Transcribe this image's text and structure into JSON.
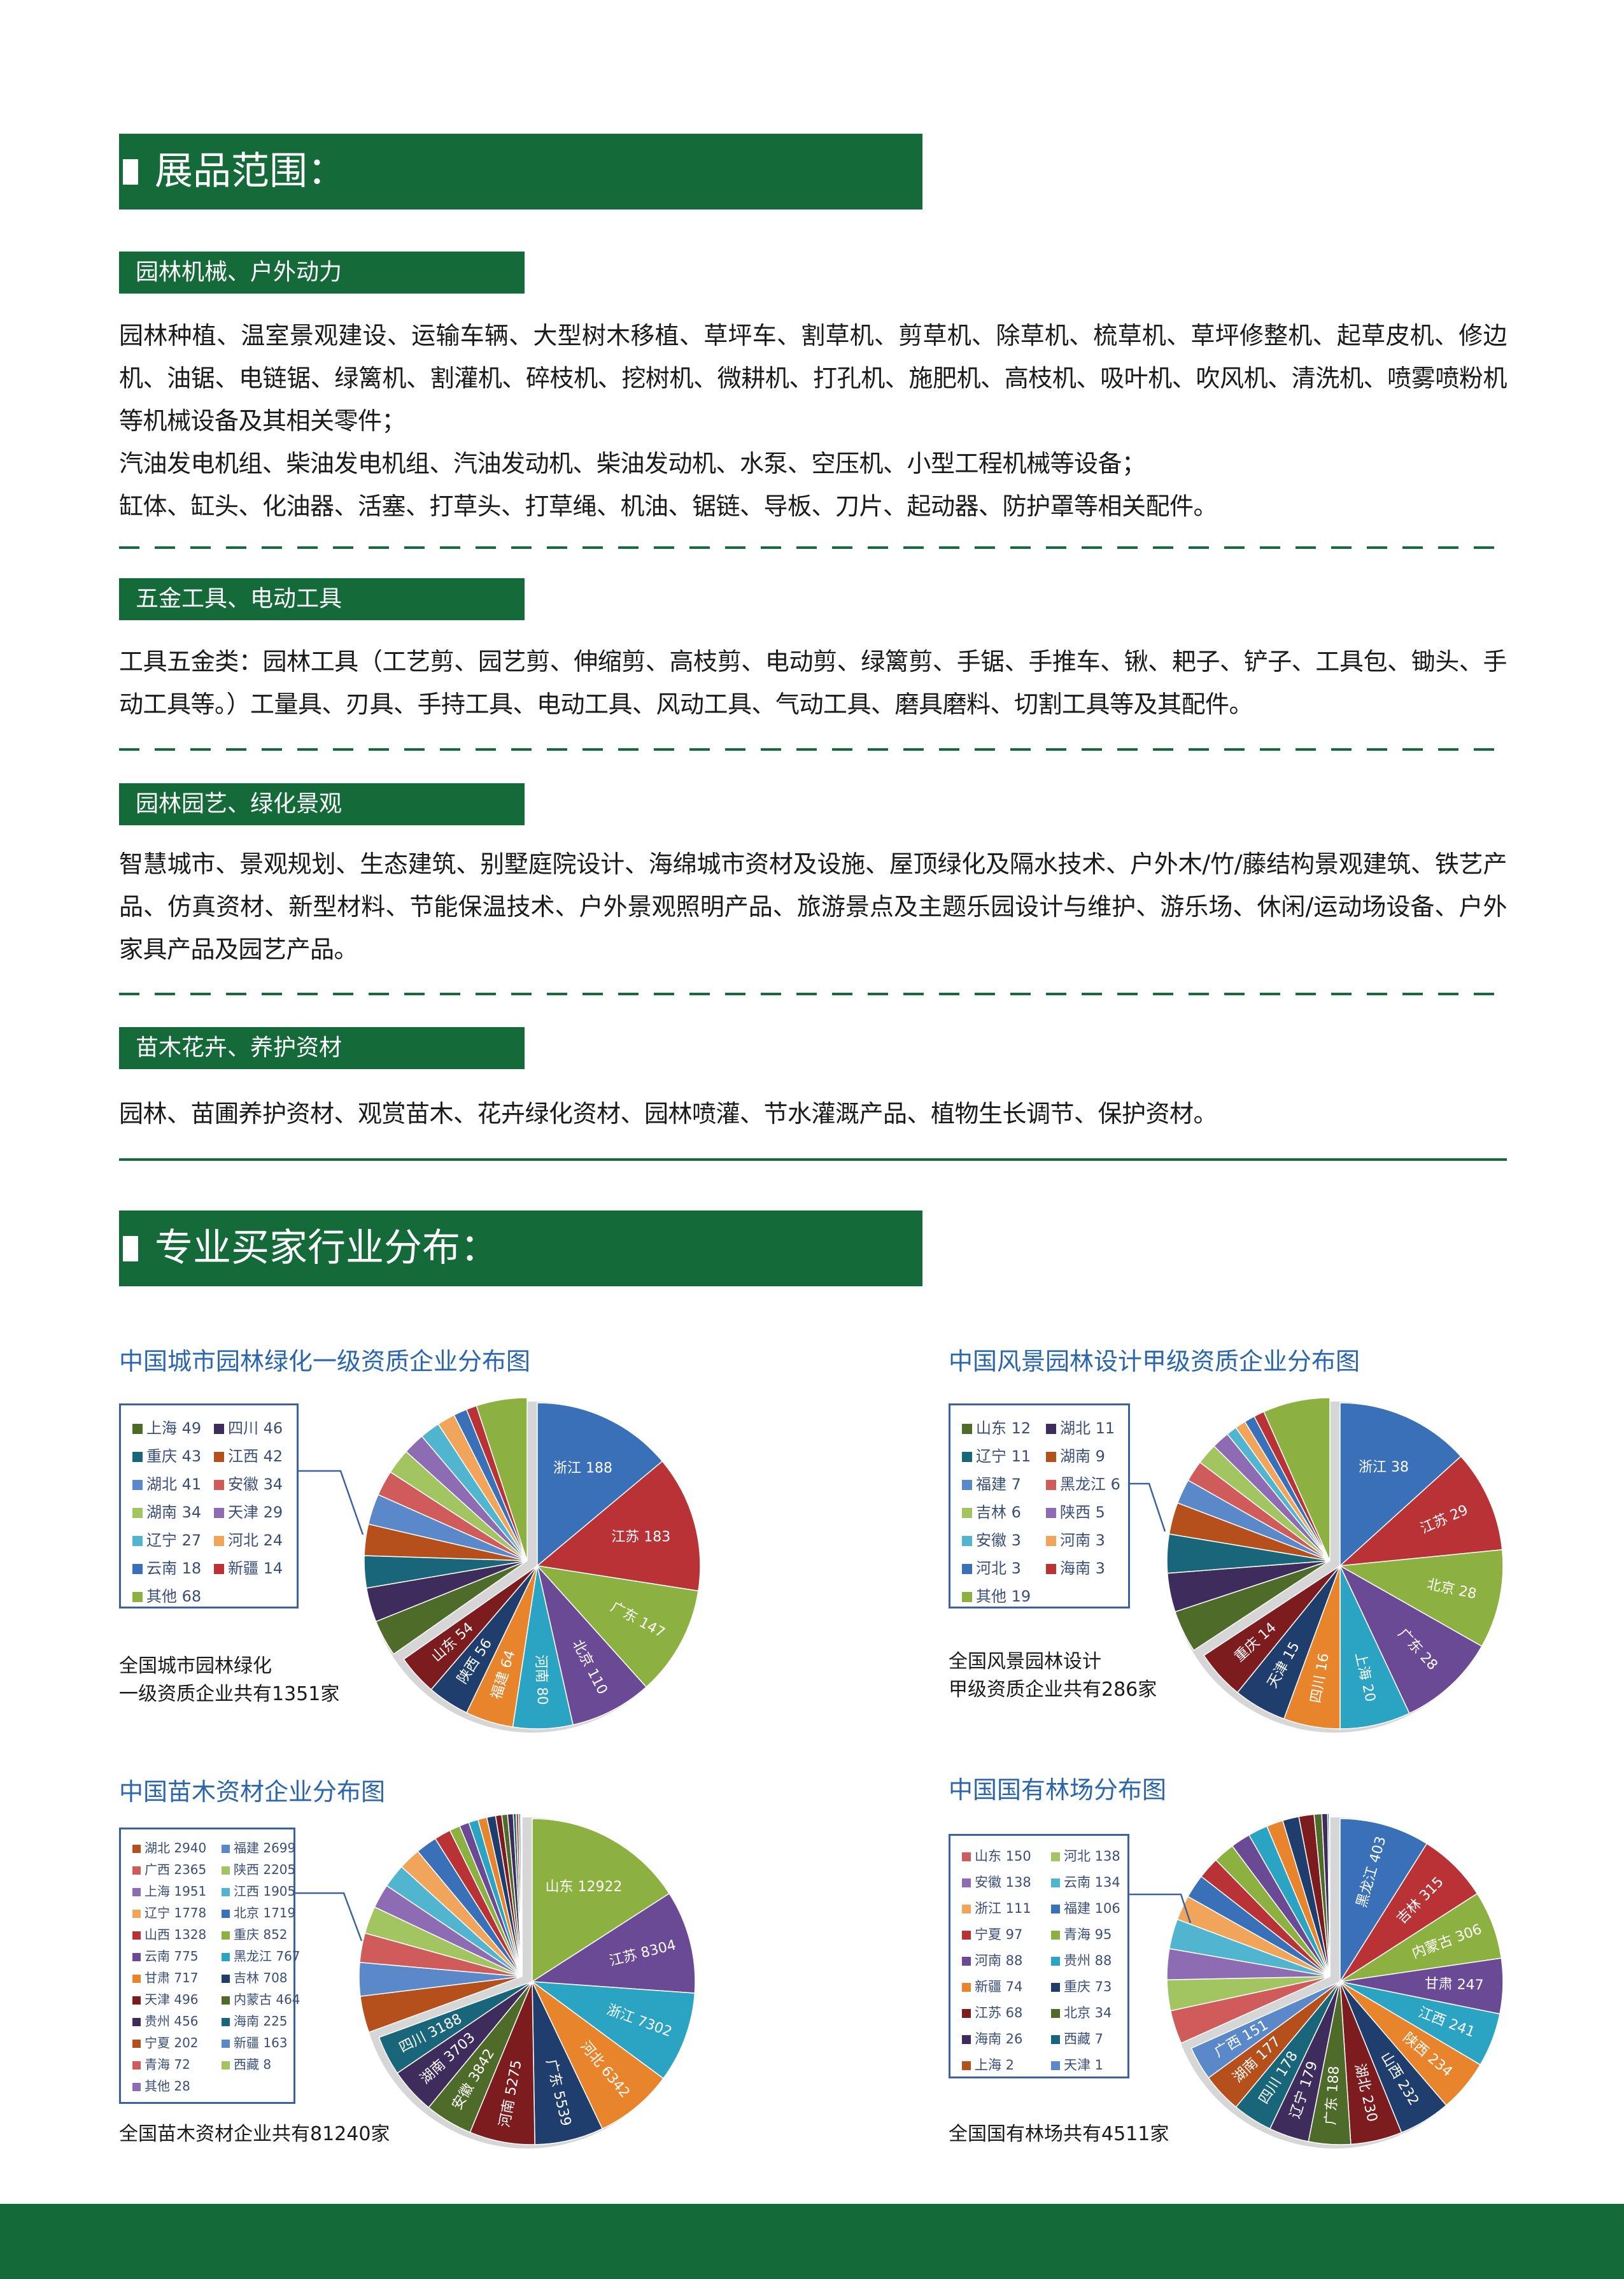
{
  "section1": {
    "title": "展品范围：",
    "categories": [
      {
        "heading": "园林机械、户外动力",
        "paragraphs": [
          "园林种植、温室景观建设、运输车辆、大型树木移植、草坪车、割草机、剪草机、除草机、梳草机、草坪修整机、起草皮机、修边机、油锯、电链锯、绿篱机、割灌机、碎枝机、挖树机、微耕机、打孔机、施肥机、高枝机、吸叶机、吹风机、清洗机、喷雾喷粉机等机械设备及其相关零件；",
          "汽油发电机组、柴油发电机组、汽油发动机、柴油发动机、水泵、空压机、小型工程机械等设备；",
          "缸体、缸头、化油器、活塞、打草头、打草绳、机油、锯链、导板、刀片、起动器、防护罩等相关配件。"
        ]
      },
      {
        "heading": "五金工具、电动工具",
        "paragraphs": [
          "工具五金类：园林工具（工艺剪、园艺剪、伸缩剪、高枝剪、电动剪、绿篱剪、手锯、手推车、锹、耙子、铲子、工具包、锄头、手动工具等。）工量具、刃具、手持工具、电动工具、风动工具、气动工具、磨具磨料、切割工具等及其配件。"
        ]
      },
      {
        "heading": "园林园艺、绿化景观",
        "paragraphs": [
          "智慧城市、景观规划、生态建筑、别墅庭院设计、海绵城市资材及设施、屋顶绿化及隔水技术、户外木/竹/藤结构景观建筑、铁艺产品、仿真资材、新型材料、节能保温技术、户外景观照明产品、旅游景点及主题乐园设计与维护、游乐场、休闲/运动场设备、户外家具产品及园艺产品。"
        ]
      },
      {
        "heading": "苗木花卉、养护资材",
        "paragraphs": [
          "园林、苗圃养护资材、观赏苗木、花卉绿化资材、园林喷灌、节水灌溉产品、植物生长调节、保护资材。"
        ]
      }
    ]
  },
  "section2": {
    "title": "专业买家行业分布："
  },
  "colors": {
    "brand_green": "#146a38",
    "chart_title_blue": "#2a66ad",
    "palette": [
      "#3a70b8",
      "#b83236",
      "#8cb140",
      "#6b4a95",
      "#2ba3c2",
      "#e8842b",
      "#1f3e6e",
      "#7d1c1f",
      "#4f6b2a",
      "#3e2c5c",
      "#19657a",
      "#b5501c",
      "#5b88c9",
      "#d05b5b",
      "#a2c561",
      "#8d6cb3",
      "#52b5d0",
      "#f0a55a"
    ]
  },
  "chart_data": [
    {
      "type": "pie",
      "title": "中国城市园林绿化一级资质企业分布图",
      "caption": [
        "全国城市园林绿化",
        "一级资质企业共有1351家"
      ],
      "color_offset": 0,
      "slices": [
        {
          "name": "浙江",
          "value": 188
        },
        {
          "name": "江苏",
          "value": 183
        },
        {
          "name": "广东",
          "value": 147
        },
        {
          "name": "北京",
          "value": 110
        },
        {
          "name": "河南",
          "value": 80
        },
        {
          "name": "福建",
          "value": 64
        },
        {
          "name": "陕西",
          "value": 56
        },
        {
          "name": "山东",
          "value": 54
        }
      ],
      "legend": [
        {
          "name": "上海",
          "value": 49
        },
        {
          "name": "四川",
          "value": 46
        },
        {
          "name": "重庆",
          "value": 43
        },
        {
          "name": "江西",
          "value": 42
        },
        {
          "name": "湖北",
          "value": 41
        },
        {
          "name": "安徽",
          "value": 34
        },
        {
          "name": "湖南",
          "value": 34
        },
        {
          "name": "天津",
          "value": 29
        },
        {
          "name": "辽宁",
          "value": 27
        },
        {
          "name": "河北",
          "value": 24
        },
        {
          "name": "云南",
          "value": 18
        },
        {
          "name": "新疆",
          "value": 14
        },
        {
          "name": "其他",
          "value": 68
        }
      ]
    },
    {
      "type": "pie",
      "title": "中国风景园林设计甲级资质企业分布图",
      "caption": [
        "全国风景园林设计",
        "甲级资质企业共有286家"
      ],
      "color_offset": 0,
      "slices": [
        {
          "name": "浙江",
          "value": 38
        },
        {
          "name": "江苏",
          "value": 29
        },
        {
          "name": "北京",
          "value": 28
        },
        {
          "name": "广东",
          "value": 28
        },
        {
          "name": "上海",
          "value": 20
        },
        {
          "name": "四川",
          "value": 16
        },
        {
          "name": "天津",
          "value": 15
        },
        {
          "name": "重庆",
          "value": 14
        }
      ],
      "legend": [
        {
          "name": "山东",
          "value": 12
        },
        {
          "name": "湖北",
          "value": 11
        },
        {
          "name": "辽宁",
          "value": 11
        },
        {
          "name": "湖南",
          "value": 9
        },
        {
          "name": "福建",
          "value": 7
        },
        {
          "name": "黑龙江",
          "value": 6
        },
        {
          "name": "吉林",
          "value": 6
        },
        {
          "name": "陕西",
          "value": 5
        },
        {
          "name": "安徽",
          "value": 3
        },
        {
          "name": "河南",
          "value": 3
        },
        {
          "name": "河北",
          "value": 3
        },
        {
          "name": "海南",
          "value": 3
        },
        {
          "name": "其他",
          "value": 19
        }
      ]
    },
    {
      "type": "pie",
      "title": "中国苗木资材企业分布图",
      "caption": [
        "全国苗木资材企业共有81240家"
      ],
      "color_offset": 2,
      "slices": [
        {
          "name": "山东",
          "value": 12922
        },
        {
          "name": "江苏",
          "value": 8304
        },
        {
          "name": "浙江",
          "value": 7302
        },
        {
          "name": "河北",
          "value": 6342
        },
        {
          "name": "广东",
          "value": 5539
        },
        {
          "name": "河南",
          "value": 5275
        },
        {
          "name": "安徽",
          "value": 3842
        },
        {
          "name": "湖南",
          "value": 3703
        },
        {
          "name": "四川",
          "value": 3188
        }
      ],
      "legend": [
        {
          "name": "湖北",
          "value": 2940
        },
        {
          "name": "福建",
          "value": 2699
        },
        {
          "name": "广西",
          "value": 2365
        },
        {
          "name": "陕西",
          "value": 2205
        },
        {
          "name": "上海",
          "value": 1951
        },
        {
          "name": "江西",
          "value": 1905
        },
        {
          "name": "辽宁",
          "value": 1778
        },
        {
          "name": "北京",
          "value": 1719
        },
        {
          "name": "山西",
          "value": 1328
        },
        {
          "name": "重庆",
          "value": 852
        },
        {
          "name": "云南",
          "value": 775
        },
        {
          "name": "黑龙江",
          "value": 767
        },
        {
          "name": "甘肃",
          "value": 717
        },
        {
          "name": "吉林",
          "value": 708
        },
        {
          "name": "天津",
          "value": 496
        },
        {
          "name": "内蒙古",
          "value": 464
        },
        {
          "name": "贵州",
          "value": 456
        },
        {
          "name": "海南",
          "value": 225
        },
        {
          "name": "宁夏",
          "value": 202
        },
        {
          "name": "新疆",
          "value": 163
        },
        {
          "name": "青海",
          "value": 72
        },
        {
          "name": "西藏",
          "value": 8
        },
        {
          "name": "其他",
          "value": 28
        }
      ]
    },
    {
      "type": "pie",
      "title": "中国国有林场分布图",
      "caption": [
        "全国国有林场共有4511家"
      ],
      "color_offset": 0,
      "slices": [
        {
          "name": "黑龙江",
          "value": 403
        },
        {
          "name": "吉林",
          "value": 315
        },
        {
          "name": "内蒙古",
          "value": 306
        },
        {
          "name": "甘肃",
          "value": 247
        },
        {
          "name": "江西",
          "value": 241
        },
        {
          "name": "陕西",
          "value": 234
        },
        {
          "name": "山西",
          "value": 232
        },
        {
          "name": "湖北",
          "value": 230
        },
        {
          "name": "广东",
          "value": 188
        },
        {
          "name": "辽宁",
          "value": 179
        },
        {
          "name": "四川",
          "value": 178
        },
        {
          "name": "湖南",
          "value": 177
        },
        {
          "name": "广西",
          "value": 151
        }
      ],
      "legend": [
        {
          "name": "山东",
          "value": 150
        },
        {
          "name": "河北",
          "value": 138
        },
        {
          "name": "安徽",
          "value": 138
        },
        {
          "name": "云南",
          "value": 134
        },
        {
          "name": "浙江",
          "value": 111
        },
        {
          "name": "福建",
          "value": 106
        },
        {
          "name": "宁夏",
          "value": 97
        },
        {
          "name": "青海",
          "value": 95
        },
        {
          "name": "河南",
          "value": 88
        },
        {
          "name": "贵州",
          "value": 88
        },
        {
          "name": "新疆",
          "value": 74
        },
        {
          "name": "重庆",
          "value": 73
        },
        {
          "name": "江苏",
          "value": 68
        },
        {
          "name": "北京",
          "value": 34
        },
        {
          "name": "海南",
          "value": 26
        },
        {
          "name": "西藏",
          "value": 7
        },
        {
          "name": "上海",
          "value": 2
        },
        {
          "name": "天津",
          "value": 1
        }
      ]
    }
  ]
}
